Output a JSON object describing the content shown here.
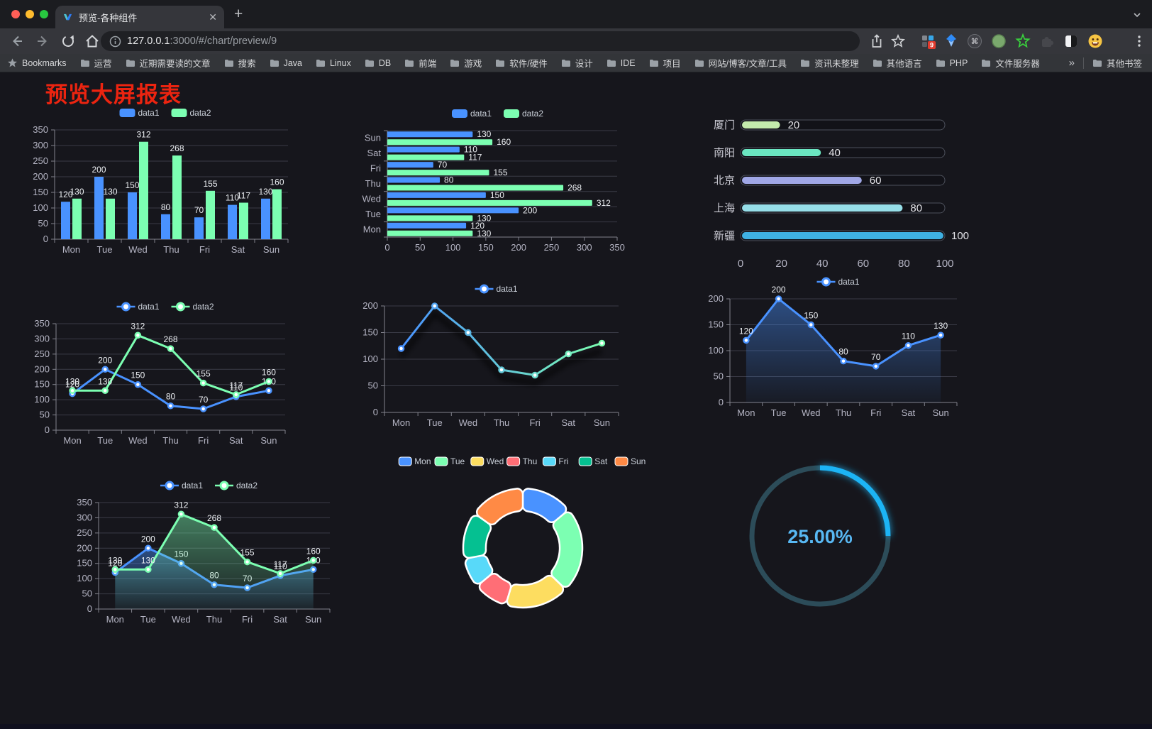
{
  "browser": {
    "tab_title": "预览-各种组件",
    "new_tab_label": "+",
    "url_host": "127.0.0.1",
    "url_rest": ":3000/#/chart/preview/9",
    "bookmarks_label": "Bookmarks",
    "bookmarks": [
      "运营",
      "近期需要读的文章",
      "搜索",
      "Java",
      "Linux",
      "DB",
      "前端",
      "游戏",
      "软件/硬件",
      "设计",
      "IDE",
      "项目",
      "网站/博客/文章/工具",
      "资讯未整理",
      "其他语言",
      "PHP",
      "文件服务器"
    ],
    "bookmarks_overflow": "»",
    "other_bookmarks": "其他书签",
    "extension_badge": "9"
  },
  "page": {
    "title": "预览大屏报表"
  },
  "chart_data": [
    {
      "id": "bar-grouped",
      "type": "bar",
      "legend_position": "top",
      "grid": true,
      "categories": [
        "Mon",
        "Tue",
        "Wed",
        "Thu",
        "Fri",
        "Sat",
        "Sun"
      ],
      "series": [
        {
          "name": "data1",
          "color": "#4992ff",
          "values": [
            120,
            200,
            150,
            80,
            70,
            110,
            130
          ]
        },
        {
          "name": "data2",
          "color": "#7cffb2",
          "values": [
            130,
            130,
            312,
            268,
            155,
            117,
            160
          ]
        }
      ],
      "ylim": [
        0,
        350
      ],
      "ytick_step": 50
    },
    {
      "id": "bar-horizontal",
      "type": "hbar",
      "legend_position": "top",
      "grid": true,
      "categories": [
        "Mon",
        "Tue",
        "Wed",
        "Thu",
        "Fri",
        "Sat",
        "Sun"
      ],
      "series": [
        {
          "name": "data1",
          "color": "#4992ff",
          "values": [
            120,
            200,
            150,
            80,
            70,
            110,
            130
          ]
        },
        {
          "name": "data2",
          "color": "#7cffb2",
          "values": [
            130,
            130,
            312,
            268,
            155,
            117,
            160
          ]
        }
      ],
      "xlim": [
        0,
        350
      ],
      "xtick_step": 50
    },
    {
      "id": "progress-bars",
      "type": "progress",
      "max": 100,
      "xticks": [
        0,
        20,
        40,
        60,
        80,
        100
      ],
      "items": [
        {
          "label": "厦门",
          "value": 20,
          "color": "#c4ebad"
        },
        {
          "label": "南阳",
          "value": 40,
          "color": "#6be6c1"
        },
        {
          "label": "北京",
          "value": 60,
          "color": "#a0a7e6"
        },
        {
          "label": "上海",
          "value": 80,
          "color": "#96dee8"
        },
        {
          "label": "新疆",
          "value": 100,
          "color": "#3fb1e3"
        }
      ]
    },
    {
      "id": "line-two-series",
      "type": "line",
      "legend_position": "top",
      "labels": true,
      "categories": [
        "Mon",
        "Tue",
        "Wed",
        "Thu",
        "Fri",
        "Sat",
        "Sun"
      ],
      "series": [
        {
          "name": "data1",
          "color": "#4992ff",
          "values": [
            120,
            200,
            150,
            80,
            70,
            110,
            130
          ]
        },
        {
          "name": "data2",
          "color": "#7cffb2",
          "values": [
            130,
            130,
            312,
            268,
            155,
            117,
            160
          ]
        }
      ],
      "ylim": [
        0,
        350
      ],
      "ytick_step": 50
    },
    {
      "id": "line-gradient",
      "type": "line",
      "variant": "gradient",
      "legend_position": "top",
      "labels": false,
      "categories": [
        "Mon",
        "Tue",
        "Wed",
        "Thu",
        "Fri",
        "Sat",
        "Sun"
      ],
      "series": [
        {
          "name": "data1",
          "color": "#4992ff",
          "values": [
            120,
            200,
            150,
            80,
            70,
            110,
            130
          ]
        }
      ],
      "gradient_colors": [
        "#4992ff",
        "#7cffb2"
      ],
      "ylim": [
        0,
        200
      ],
      "ytick_step": 50
    },
    {
      "id": "line-area",
      "type": "area",
      "legend_position": "top",
      "labels": true,
      "categories": [
        "Mon",
        "Tue",
        "Wed",
        "Thu",
        "Fri",
        "Sat",
        "Sun"
      ],
      "series": [
        {
          "name": "data1",
          "color": "#4992ff",
          "values": [
            120,
            200,
            150,
            80,
            70,
            110,
            130
          ]
        }
      ],
      "ylim": [
        0,
        200
      ],
      "ytick_step": 50
    },
    {
      "id": "line-area-two",
      "type": "area",
      "legend_position": "top",
      "labels": true,
      "categories": [
        "Mon",
        "Tue",
        "Wed",
        "Thu",
        "Fri",
        "Sat",
        "Sun"
      ],
      "series": [
        {
          "name": "data1",
          "color": "#4992ff",
          "values": [
            120,
            200,
            150,
            80,
            70,
            110,
            130
          ]
        },
        {
          "name": "data2",
          "color": "#7cffb2",
          "values": [
            130,
            130,
            312,
            268,
            155,
            117,
            160
          ]
        }
      ],
      "ylim": [
        0,
        350
      ],
      "ytick_step": 50
    },
    {
      "id": "donut",
      "type": "pie",
      "legend_position": "top",
      "inner_radius_ratio": 0.62,
      "items": [
        {
          "name": "Mon",
          "value": 120,
          "color": "#4992ff"
        },
        {
          "name": "Tue",
          "value": 200,
          "color": "#7cffb2"
        },
        {
          "name": "Wed",
          "value": 150,
          "color": "#fddd60"
        },
        {
          "name": "Thu",
          "value": 80,
          "color": "#ff6e76"
        },
        {
          "name": "Fri",
          "value": 70,
          "color": "#58d9f9"
        },
        {
          "name": "Sat",
          "value": 110,
          "color": "#05c091"
        },
        {
          "name": "Sun",
          "value": 130,
          "color": "#ff8a45"
        }
      ]
    },
    {
      "id": "gauge",
      "type": "gauge",
      "value": 25,
      "max": 100,
      "display": "25.00%",
      "progress_color": "#1db4f5",
      "track_color": "#2c4c59",
      "text_color": "#58b8f3"
    }
  ]
}
